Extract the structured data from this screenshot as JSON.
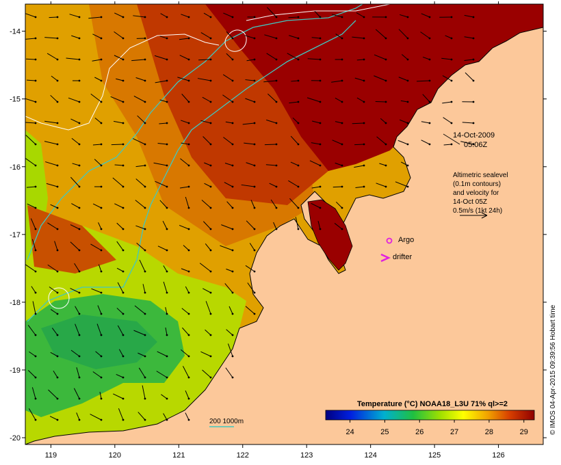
{
  "map": {
    "lon_range": [
      118.6,
      126.7
    ],
    "lat_range": [
      -20.1,
      -13.6
    ],
    "lon_ticks": [
      "119",
      "120",
      "121",
      "122",
      "123",
      "124",
      "125",
      "126"
    ],
    "lat_ticks": [
      "-14",
      "-15",
      "-16",
      "-17",
      "-18",
      "-19",
      "-20"
    ],
    "date_line": "14-Oct-2009",
    "time_line": "05:06Z",
    "altimetry_note": [
      "Altimetric sealevel",
      "(0.1m contours)",
      "and velocity for",
      "14-Oct 05Z",
      "0.5m/s (1kt 24h)"
    ],
    "argo_label": "Argo",
    "drifter_label": "drifter",
    "depth_legend": "200  1000m",
    "colorbar_title": "Temperature (°C) NOAA18_L3U 71% ql>=2",
    "colorbar_ticks": [
      "24",
      "25",
      "26",
      "27",
      "28",
      "29"
    ],
    "colorbar_range": [
      23.3,
      29.3
    ],
    "credit": "© IMOS 04-Apr-2015 09:39:56 Hobart time",
    "colors": {
      "land": "#fcc89a",
      "warmest": "#9a0000",
      "warm": "#c43a00",
      "mid_warm": "#e07800",
      "mid": "#e8b400",
      "cool": "#c8e000",
      "cooler": "#70d000",
      "coolest": "#20a840",
      "isobath_200": "#40c8c0",
      "contour": "#ffffff",
      "argo": "#e020e0",
      "drifter": "#e020e0"
    }
  }
}
